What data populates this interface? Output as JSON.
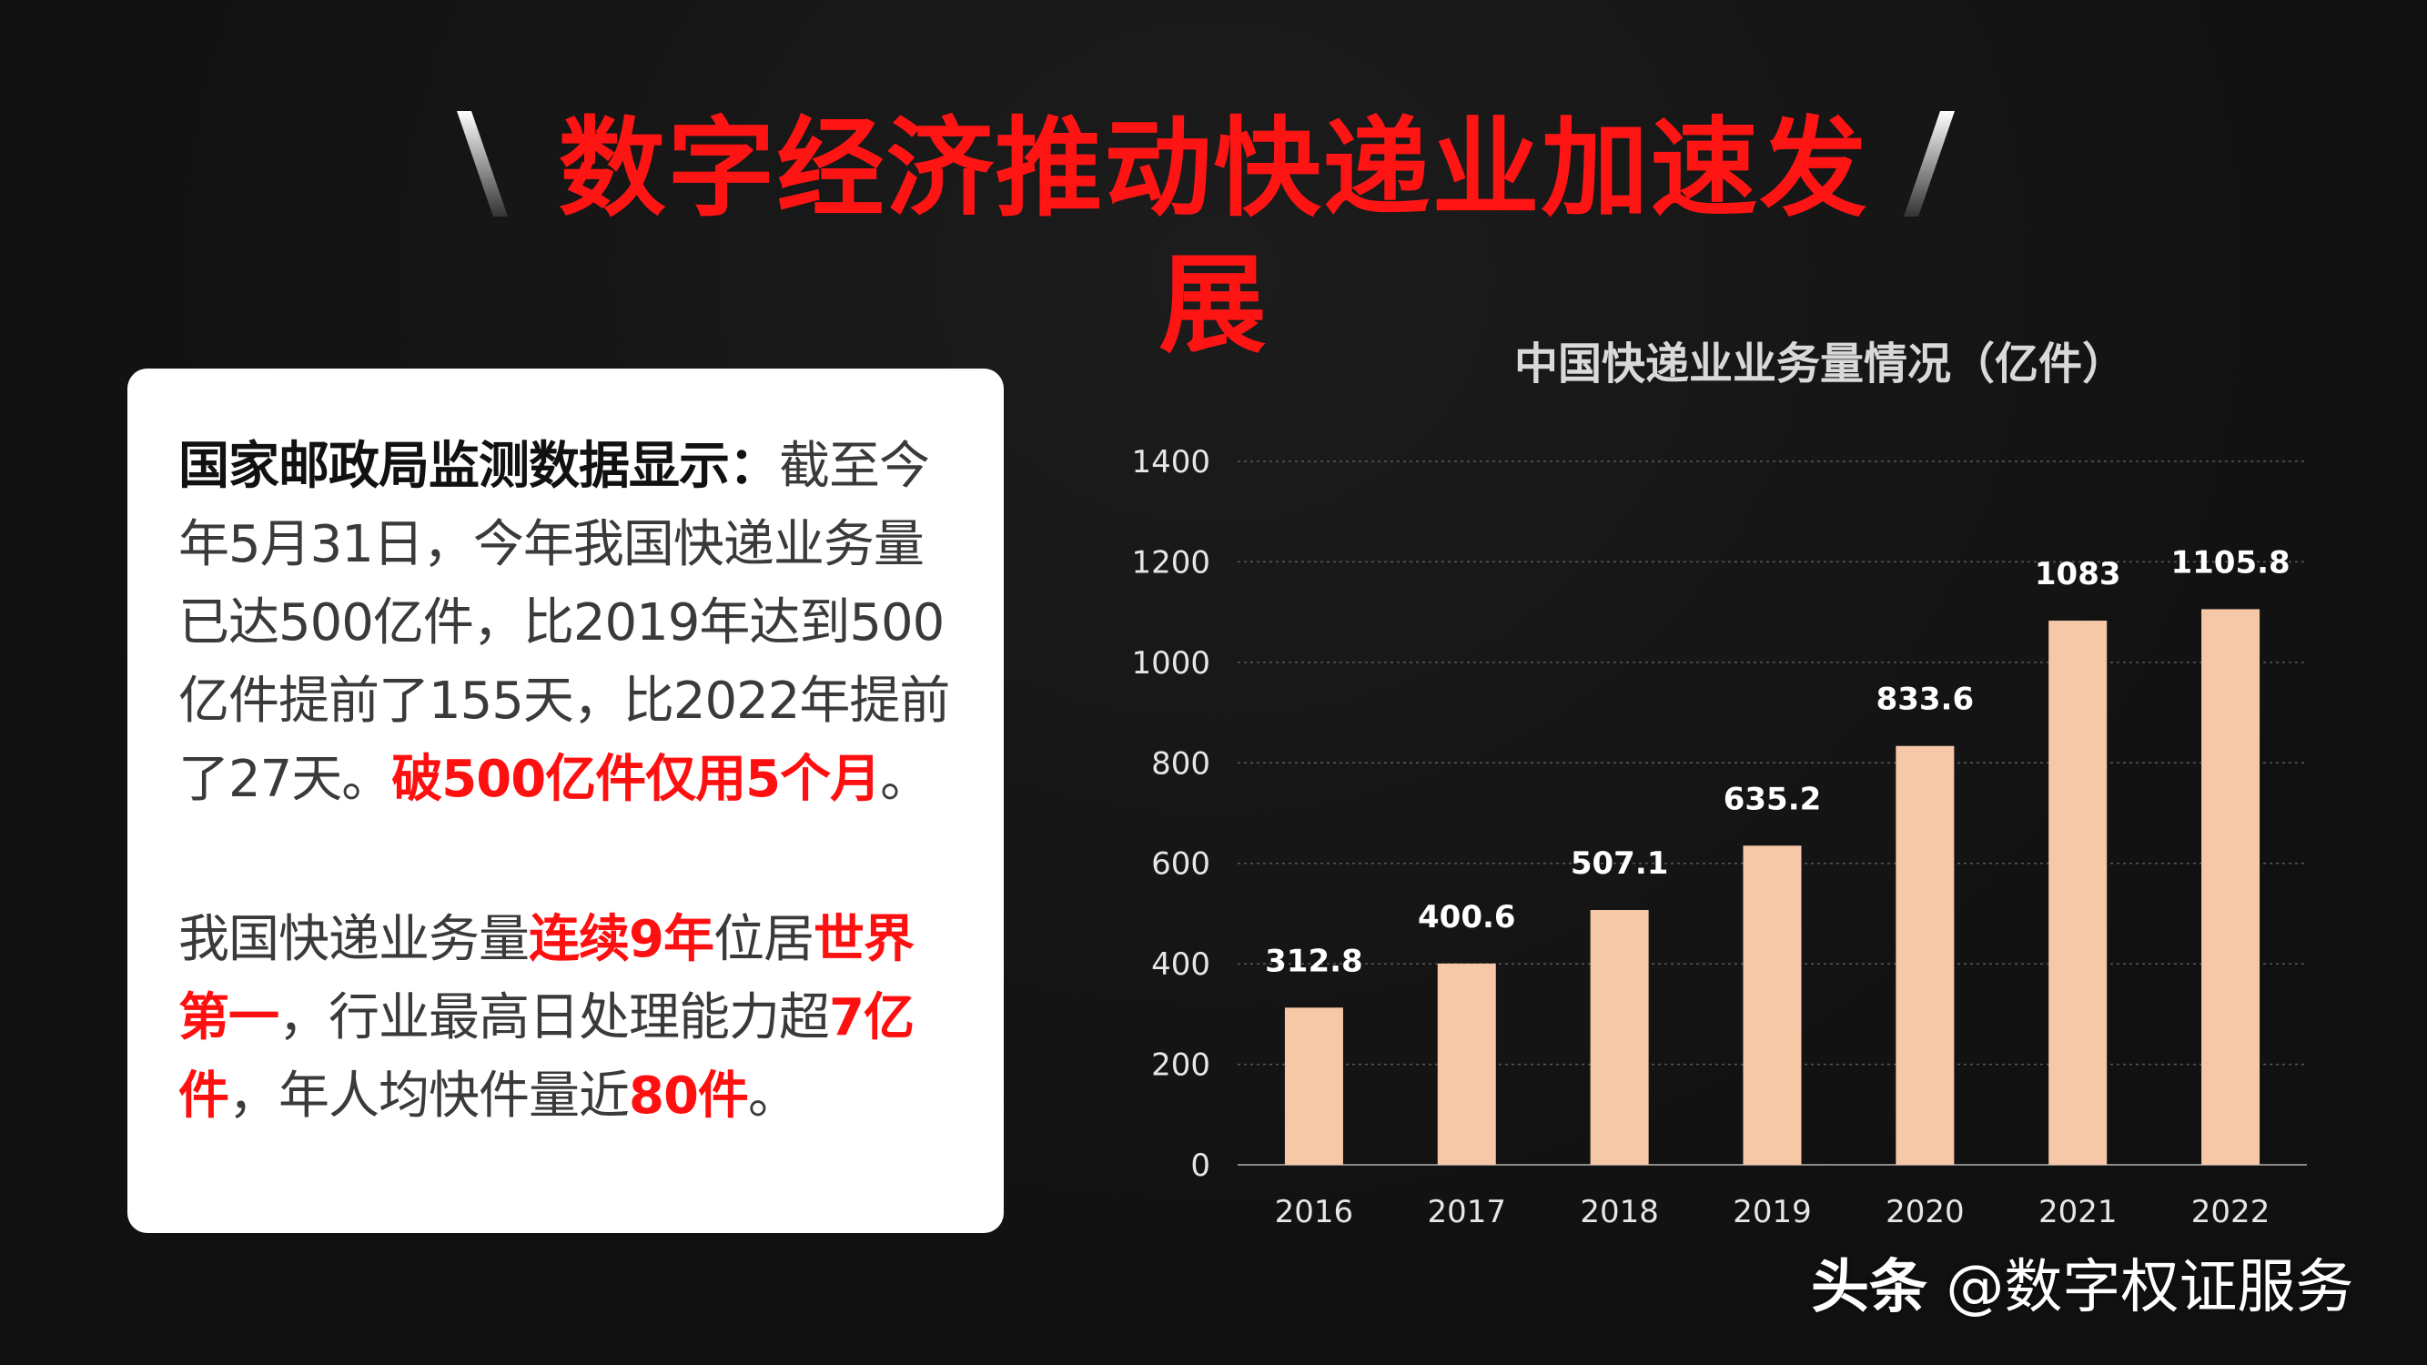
{
  "title": "数字经济推动快递业加速发展",
  "card": {
    "p1_lead": "国家邮政局监测数据显示：",
    "p1_text": "截至今年5月31日，今年我国快递业务量已达500亿件，比2019年达到500亿件提前了155天，比2022年提前了27天。",
    "p1_highlight": "破500亿件仅用5个月",
    "p1_end": "。",
    "p2_a": "我国快递业务量",
    "p2_hl1": "连续9年",
    "p2_b": "位居",
    "p2_hl2": "世界第一",
    "p2_c": "，行业最高日处理能力超",
    "p2_hl3": "7亿件",
    "p2_d": "，年人均快件量近",
    "p2_hl4": "80件",
    "p2_e": "。"
  },
  "chart_data": {
    "type": "bar",
    "title": "中国快递业业务量情况（亿件）",
    "categories": [
      "2016",
      "2017",
      "2018",
      "2019",
      "2020",
      "2021",
      "2022"
    ],
    "values": [
      312.8,
      400.6,
      507.1,
      635.2,
      833.6,
      1083,
      1105.8
    ],
    "value_labels": [
      "312.8",
      "400.6",
      "507.1",
      "635.2",
      "833.6",
      "1083",
      "1105.8"
    ],
    "ylim": [
      0,
      1400
    ],
    "yticks": [
      "0",
      "200",
      "400",
      "600",
      "800",
      "1000",
      "1200",
      "1400"
    ],
    "grid": true,
    "bar_color": "#f7c8a8"
  },
  "watermark": {
    "brand": "头条",
    "handle": "@数字权证服务"
  },
  "colors": {
    "title_red": "#ff1414",
    "highlight_red": "#ff1010",
    "background": "#121212"
  }
}
